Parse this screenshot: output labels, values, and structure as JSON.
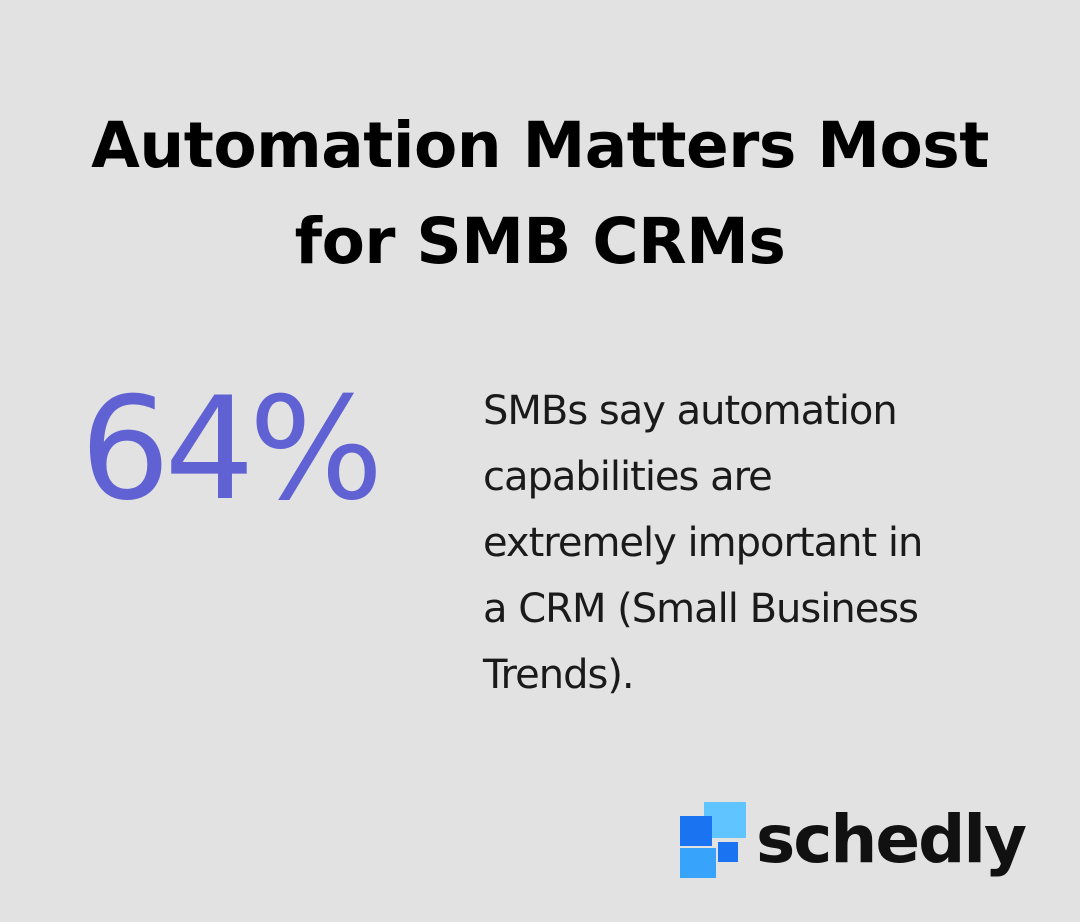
{
  "header": {
    "title_line1": "Automation Matters Most",
    "title_line2": "for SMB CRMs"
  },
  "stat": {
    "value": "64%",
    "description_lines": [
      "SMBs say automation",
      "capabilities are",
      "extremely important in",
      "a CRM (Small Business",
      "Trends)."
    ]
  },
  "brand": {
    "name": "schedly",
    "logo_icon": "pixel-blocks-logo-icon"
  },
  "colors": {
    "background": "#e1e2e1",
    "stat_accent": "#6061d3",
    "logo_dark_blue": "#1a73f0",
    "logo_light_blue": "#5fc4ff",
    "logo_mid_blue": "#37a3fb"
  }
}
